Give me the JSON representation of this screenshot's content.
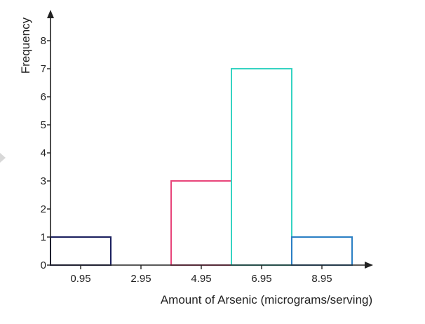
{
  "chart_data": {
    "type": "bar",
    "title": "",
    "xlabel": "Amount of Arsenic (micrograms/serving)",
    "ylabel": "Frequency",
    "x_tick_labels": [
      "0.95",
      "2.95",
      "4.95",
      "6.95",
      "8.95"
    ],
    "y_tick_labels": [
      "0",
      "1",
      "2",
      "3",
      "4",
      "5",
      "6",
      "7",
      "8"
    ],
    "ylim": [
      0,
      8
    ],
    "grid": false,
    "bins": [
      {
        "center": "0.95",
        "value": 1,
        "color": "#1a1f5e"
      },
      {
        "center": "2.95",
        "value": 0,
        "color": "#1a1f5e"
      },
      {
        "center": "4.95",
        "value": 3,
        "color": "#e8457a"
      },
      {
        "center": "6.95",
        "value": 7,
        "color": "#35d3c2"
      },
      {
        "center": "8.95",
        "value": 1,
        "color": "#2a7fc4"
      }
    ]
  }
}
